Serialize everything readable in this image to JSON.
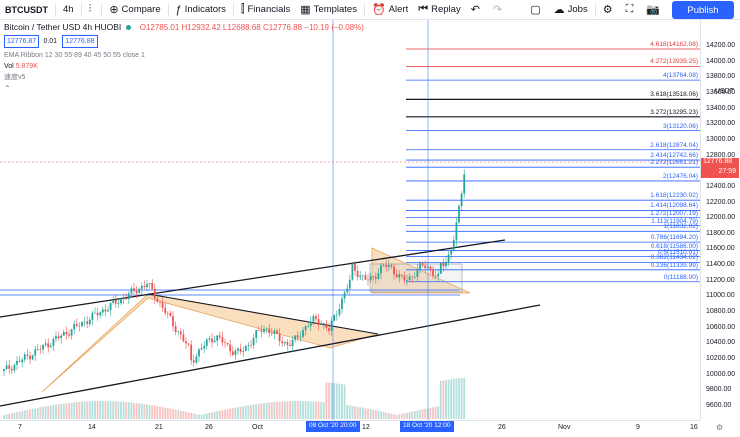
{
  "toolbar": {
    "symbol": "BTCUSDT",
    "interval": "4h",
    "compare": "Compare",
    "indicators": "Indicators",
    "financials": "Financials",
    "templates": "Templates",
    "alert": "Alert",
    "replay": "Replay",
    "jobs": "Jobs",
    "publish": "Publish"
  },
  "legend": {
    "title": "Bitcoin / Tether USD",
    "interval": "4h",
    "exchange": "HUOBI",
    "ohlc": "O12785.01 H12932.42 L12688.68 C12776.88 −10.19 (−0.08%)",
    "bid": "12776.87",
    "spread": "0.01",
    "ask": "12776.88",
    "ema": "EMA Ribbon 12 30 55 89 40 45 50 55 close 1",
    "vol_label": "Vol",
    "vol_value": "5.879K",
    "extra": "速度v5"
  },
  "price_axis": {
    "unit": "USDT",
    "ticks": [
      "14200.00",
      "14000.00",
      "13800.00",
      "13600.00",
      "13400.00",
      "13200.00",
      "13000.00",
      "12800.00",
      "12600.00",
      "12400.00",
      "12200.00",
      "12000.00",
      "11800.00",
      "11600.00",
      "11400.00",
      "11200.00",
      "11000.00",
      "10800.00",
      "10600.00",
      "10400.00",
      "10200.00",
      "10000.00",
      "9800.00",
      "9600.00"
    ],
    "current_price": "12776.88",
    "countdown": "27:59"
  },
  "fib_levels": [
    {
      "label": "4.618(14162.08)",
      "color": "#e53935"
    },
    {
      "label": "4.272(13939.25)",
      "color": "#e53935"
    },
    {
      "label": "4(13764.08)",
      "color": "#2962ff"
    },
    {
      "label": "3.618(13518.06)",
      "color": "#131722"
    },
    {
      "label": "3.272(13295.23)",
      "color": "#131722"
    },
    {
      "label": "3(13120.06)",
      "color": "#2962ff"
    },
    {
      "label": "2.618(12874.04)",
      "color": "#2962ff"
    },
    {
      "label": "2.414(12742.66)",
      "color": "#2962ff"
    },
    {
      "label": "2.272(12651.21)",
      "color": "#2962ff"
    },
    {
      "label": "2(12476.04)",
      "color": "#2962ff"
    },
    {
      "label": "1.618(12230.02)",
      "color": "#2962ff"
    },
    {
      "label": "1.414(12098.64)",
      "color": "#2962ff"
    },
    {
      "label": "1.272(12007.19)",
      "color": "#2962ff"
    },
    {
      "label": "1.113(11904.79)",
      "color": "#2962ff"
    },
    {
      "label": "1(11832.02)",
      "color": "#2962ff"
    },
    {
      "label": "0.786(11694.20)",
      "color": "#2962ff"
    },
    {
      "label": "0.618(11586.00)",
      "color": "#2962ff"
    },
    {
      "label": "0.5(11510.01)",
      "color": "#2962ff"
    },
    {
      "label": "0.382(11434.02)",
      "color": "#2962ff"
    },
    {
      "label": "0.236(11339.99)",
      "color": "#2962ff"
    },
    {
      "label": "0(11188.00)",
      "color": "#2962ff"
    }
  ],
  "time_axis": {
    "labels": [
      "7",
      "14",
      "21",
      "26",
      "Oct",
      "12",
      "26",
      "Nov",
      "9",
      "16"
    ],
    "tag1": "08 Oct '20  20:00",
    "tag2": "18 Oct '20  12:00"
  },
  "colors": {
    "up": "#26a69a",
    "down": "#ef5350",
    "triangle": "#f5c58a",
    "accent": "#2962ff"
  }
}
